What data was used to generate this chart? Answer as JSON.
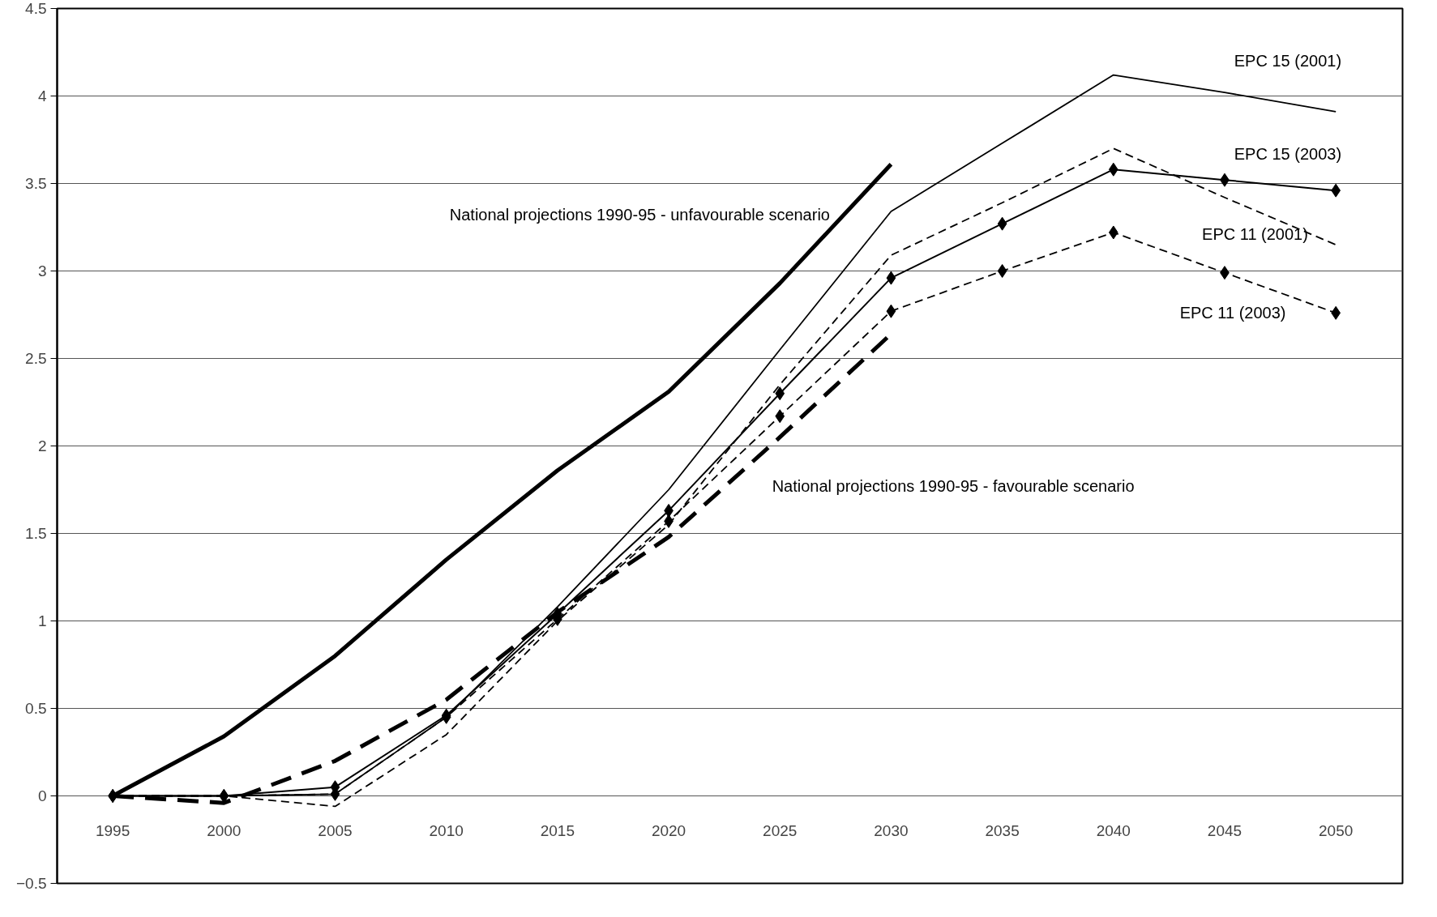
{
  "chart_data": {
    "type": "line",
    "categories": [
      "1995",
      "2000",
      "2005",
      "2010",
      "2015",
      "2020",
      "2025",
      "2030",
      "2035",
      "2040",
      "2045",
      "2050"
    ],
    "series": [
      {
        "name": "National projections 1990-95 - unfavourable scenario",
        "color": "#000000",
        "line_style": "solid",
        "marker": "none",
        "values": [
          0,
          0.34,
          0.8,
          1.35,
          1.86,
          2.31,
          2.93,
          3.61,
          null,
          null,
          null,
          null
        ]
      },
      {
        "name": "National projections 1990-95 - favourable scenario",
        "color": "#000000",
        "line_style": "dashed",
        "marker": "none",
        "values": [
          0,
          -0.04,
          0.2,
          0.55,
          1.05,
          1.48,
          2.05,
          2.64,
          null,
          null,
          null,
          null
        ]
      },
      {
        "name": "EPC 15 (2001)",
        "color": "#000000",
        "line_style": "solid",
        "marker": "none",
        "values": [
          0,
          0,
          0.01,
          0.45,
          1.08,
          1.75,
          2.55,
          3.34,
          3.73,
          4.12,
          4.02,
          3.91
        ]
      },
      {
        "name": "EPC 15 (2003)",
        "color": "#000000",
        "line_style": "solid",
        "marker": "diamond",
        "values": [
          0,
          0,
          0.05,
          0.46,
          1.04,
          1.63,
          2.3,
          2.96,
          3.27,
          3.58,
          3.52,
          3.46
        ]
      },
      {
        "name": "EPC 11 (2001)",
        "color": "#000000",
        "line_style": "dashed",
        "marker": "none",
        "values": [
          0,
          0,
          -0.06,
          0.35,
          1.0,
          1.55,
          2.35,
          3.09,
          3.39,
          3.7,
          3.42,
          3.15
        ]
      },
      {
        "name": "EPC 11 (2003)",
        "color": "#000000",
        "line_style": "dashed",
        "marker": "diamond",
        "values": [
          0,
          0,
          0.01,
          0.45,
          1.01,
          1.57,
          2.17,
          2.77,
          3.0,
          3.22,
          2.99,
          2.76
        ]
      }
    ],
    "ylim": [
      -0.5,
      4.5
    ],
    "yticks": [
      -0.5,
      0,
      0.5,
      1,
      1.5,
      2,
      2.5,
      3,
      3.5,
      4,
      4.5
    ],
    "grid": "y"
  }
}
